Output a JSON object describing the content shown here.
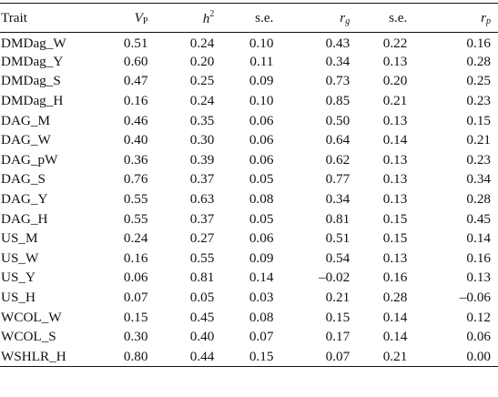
{
  "table": {
    "headers": {
      "trait": "Trait",
      "vp_base": "V",
      "vp_sub": "P",
      "h2_base": "h",
      "h2_sup": "2",
      "se1": "s.e.",
      "rg_base": "r",
      "rg_sub": "g",
      "se2": "s.e.",
      "rp_base": "r",
      "rp_sub": "p"
    },
    "rows": [
      [
        "DMDag_W",
        "0.51",
        "0.24",
        "0.10",
        "0.43",
        "0.22",
        "0.16"
      ],
      [
        "DMDag_Y",
        "0.60",
        "0.20",
        "0.11",
        "0.34",
        "0.13",
        "0.28"
      ],
      [
        "DMDag_S",
        "0.47",
        "0.25",
        "0.09",
        "0.73",
        "0.20",
        "0.25"
      ],
      [
        "DMDag_H",
        "0.16",
        "0.24",
        "0.10",
        "0.85",
        "0.21",
        "0.23"
      ],
      [
        "DAG_M",
        "0.46",
        "0.35",
        "0.06",
        "0.50",
        "0.13",
        "0.15"
      ],
      [
        "DAG_W",
        "0.40",
        "0.30",
        "0.06",
        "0.64",
        "0.14",
        "0.21"
      ],
      [
        "DAG_pW",
        "0.36",
        "0.39",
        "0.06",
        "0.62",
        "0.13",
        "0.23"
      ],
      [
        "DAG_S",
        "0.76",
        "0.37",
        "0.05",
        "0.77",
        "0.13",
        "0.34"
      ],
      [
        "DAG_Y",
        "0.55",
        "0.63",
        "0.08",
        "0.34",
        "0.13",
        "0.28"
      ],
      [
        "DAG_H",
        "0.55",
        "0.37",
        "0.05",
        "0.81",
        "0.15",
        "0.45"
      ],
      [
        "US_M",
        "0.24",
        "0.27",
        "0.06",
        "0.51",
        "0.15",
        "0.14"
      ],
      [
        "US_W",
        "0.16",
        "0.55",
        "0.09",
        "0.54",
        "0.13",
        "0.16"
      ],
      [
        "US_Y",
        "0.06",
        "0.81",
        "0.14",
        "–0.02",
        "0.16",
        "0.13"
      ],
      [
        "US_H",
        "0.07",
        "0.05",
        "0.03",
        "0.21",
        "0.28",
        "–0.06"
      ],
      [
        "WCOL_W",
        "0.15",
        "0.45",
        "0.08",
        "0.15",
        "0.14",
        "0.12"
      ],
      [
        "WCOL_S",
        "0.30",
        "0.40",
        "0.07",
        "0.17",
        "0.14",
        "0.06"
      ],
      [
        "WSHLR_H",
        "0.80",
        "0.44",
        "0.15",
        "0.07",
        "0.21",
        "0.00"
      ]
    ]
  }
}
